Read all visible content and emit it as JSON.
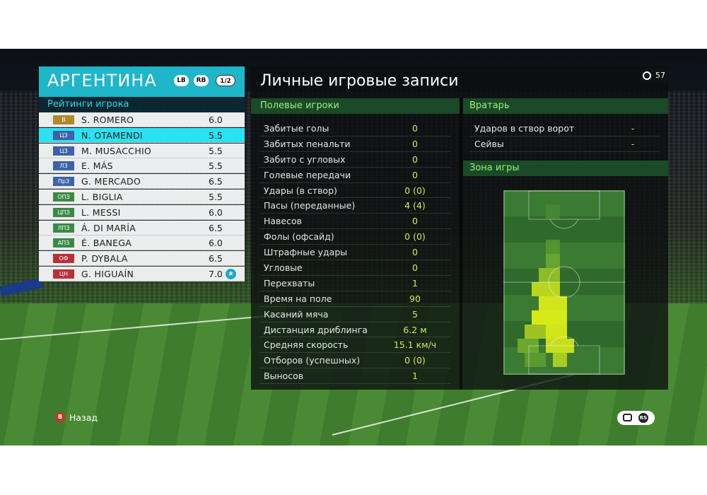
{
  "team": {
    "name": "АРГЕНТИНА",
    "lb_label": "LB",
    "rb_label": "RB",
    "page_indicator": "1/2",
    "rating_title": "Рейтинги игрока"
  },
  "players": [
    {
      "pos": "В",
      "name": "S. ROMERO",
      "rating": "6.0"
    },
    {
      "pos": "ЦЗ",
      "name": "N. OTAMENDI",
      "rating": "5.5",
      "selected": true
    },
    {
      "pos": "ЦЗ",
      "name": "M. MUSACCHIO",
      "rating": "5.5"
    },
    {
      "pos": "ЛЗ",
      "name": "E. MÁS",
      "rating": "5.5"
    },
    {
      "pos": "ПрЗ",
      "name": "G. MERCADO",
      "rating": "6.5"
    },
    {
      "pos": "ОПЗ",
      "name": "L. BIGLIA",
      "rating": "5.5"
    },
    {
      "pos": "ЦПЗ",
      "name": "L. MESSI",
      "rating": "6.0"
    },
    {
      "pos": "ЛПЗ",
      "name": "Á. DI MARÍA",
      "rating": "6.5"
    },
    {
      "pos": "АПЗ",
      "name": "É. BANEGA",
      "rating": "6.0"
    },
    {
      "pos": "ОФ",
      "name": "P. DYBALA",
      "rating": "6.5"
    },
    {
      "pos": "ЦН",
      "name": "G. HIGUAÍN",
      "rating": "7.0",
      "star": true
    }
  ],
  "main": {
    "title": "Личные игровые записи",
    "timer": "57",
    "field_title": "Полевые игроки",
    "gk_title": "Вратарь",
    "zone_title": "Зона игры"
  },
  "stats": [
    {
      "label": "Забитые голы",
      "value": "0"
    },
    {
      "label": "Забитых пенальти",
      "value": "0"
    },
    {
      "label": "Забито с угловых",
      "value": "0"
    },
    {
      "label": "Голевые передачи",
      "value": "0"
    },
    {
      "label": "Удары (в створ)",
      "value": "0 (0)"
    },
    {
      "label": "Пасы (переданные)",
      "value": "4 (4)"
    },
    {
      "label": "Навесов",
      "value": "0"
    },
    {
      "label": "Фолы (офсайд)",
      "value": "0 (0)"
    },
    {
      "label": "Штрафные удары",
      "value": "0"
    },
    {
      "label": "Угловые",
      "value": "0"
    },
    {
      "label": "Перехваты",
      "value": "1"
    },
    {
      "label": "Время на поле",
      "value": "90"
    },
    {
      "label": "Касаний мяча",
      "value": "5"
    },
    {
      "label": "Дистанция дриблинга",
      "value": "6.2 м"
    },
    {
      "label": "Средняя скорость",
      "value": "15.1 км/ч"
    },
    {
      "label": "Отборов (успешных)",
      "value": "0 (0)"
    },
    {
      "label": "Выносов",
      "value": "1"
    }
  ],
  "gk_stats": [
    {
      "label": "Ударов в створ ворот",
      "value": "-"
    },
    {
      "label": "Сейвы",
      "value": "-"
    }
  ],
  "footer": {
    "back_button": "B",
    "back_label": "Назад",
    "rs_label": "RS"
  },
  "colors": {
    "accent": "#1fb6c9",
    "selected_row": "#2be2f2",
    "value_text": "#d6e85a",
    "section_text": "#9cf07a"
  }
}
